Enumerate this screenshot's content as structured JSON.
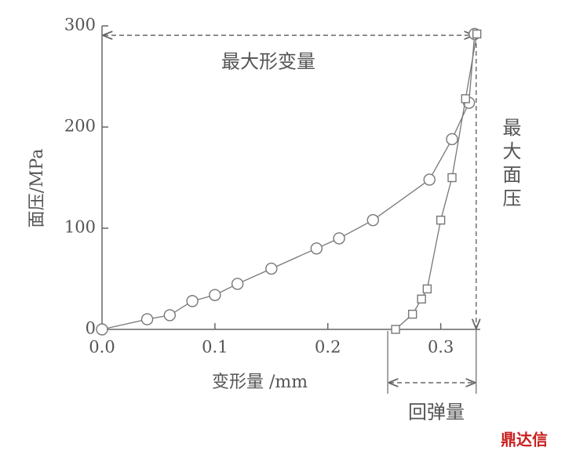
{
  "chart_data": {
    "type": "scatter",
    "xlabel": "变形量 /mm",
    "ylabel": "面压/MPa",
    "xlim": [
      0,
      0.335
    ],
    "ylim": [
      0,
      300
    ],
    "xticks": [
      {
        "value": 0,
        "label": "0.0"
      },
      0.1,
      0.2,
      0.3
    ],
    "yticks": [
      0,
      100,
      200,
      300
    ],
    "series": [
      {
        "marker": "circle",
        "color": "#777777",
        "x": [
          0,
          0.04,
          0.06,
          0.08,
          0.1,
          0.12,
          0.15,
          0.19,
          0.21,
          0.24,
          0.29,
          0.31,
          0.325,
          0.33
        ],
        "values": [
          0,
          10,
          14,
          28,
          34,
          45,
          60,
          80,
          90,
          108,
          148,
          188,
          224,
          292
        ]
      },
      {
        "marker": "square",
        "color": "#777777",
        "x": [
          0.26,
          0.275,
          0.283,
          0.288,
          0.3,
          0.31,
          0.322,
          0.332
        ],
        "values": [
          0,
          15,
          30,
          40,
          108,
          150,
          228,
          292
        ]
      }
    ],
    "annotations": {
      "max_deformation": "最大形变量",
      "max_pressure": "最大面压",
      "springback": "回弹量"
    },
    "watermark": "鼎达信"
  }
}
